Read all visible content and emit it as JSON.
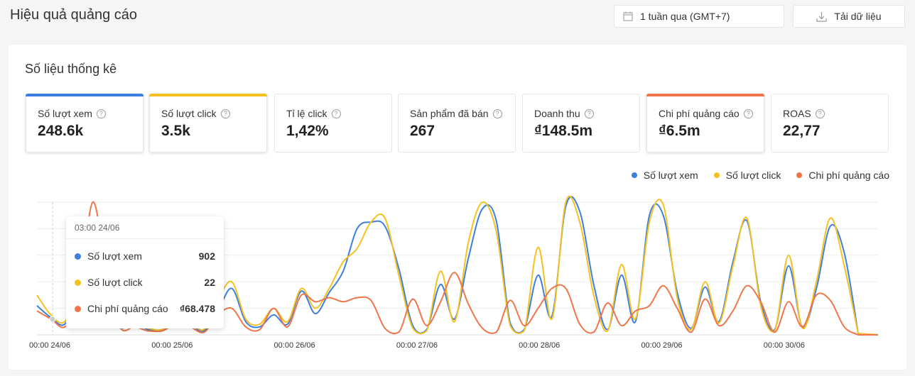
{
  "header": {
    "title": "Hiệu quả quảng cáo",
    "date_range": "1 tuần qua (GMT+7)",
    "download": "Tải dữ liệu"
  },
  "panel": {
    "title": "Số liệu thống kê",
    "metrics": [
      {
        "label": "Số lượt xem",
        "value": "248.6k",
        "color": "#3d7fe0"
      },
      {
        "label": "Số lượt click",
        "value": "3.5k",
        "color": "#f5c11f"
      },
      {
        "label": "Tỉ lệ click",
        "value": "1,42%"
      },
      {
        "label": "Sản phẩm đã bán",
        "value": "267"
      },
      {
        "label": "Doanh thu",
        "value": "₫148.5m"
      },
      {
        "label": "Chi phí quảng cáo",
        "value": "₫6.5m",
        "color": "#f0754a"
      },
      {
        "label": "ROAS",
        "value": "22,77"
      }
    ]
  },
  "legend": [
    {
      "label": "Số lượt xem",
      "color": "#3d7fe0"
    },
    {
      "label": "Số lượt click",
      "color": "#f5c11f"
    },
    {
      "label": "Chi phí quảng cáo",
      "color": "#f0754a"
    }
  ],
  "tooltip": {
    "title": "03:00 24/06",
    "rows": [
      {
        "label": "Số lượt xem",
        "value": "902",
        "color": "#3d7fe0"
      },
      {
        "label": "Số lượt click",
        "value": "22",
        "color": "#f5c11f"
      },
      {
        "label": "Chi phí quảng cáo",
        "value": "₫68.478",
        "color": "#f0754a"
      }
    ]
  },
  "chart_data": {
    "type": "line",
    "x_ticks": [
      "00:00 24/06",
      "00:00 25/06",
      "00:00 26/06",
      "00:00 27/06",
      "00:00 28/06",
      "00:00 29/06",
      "00:00 30/06"
    ],
    "grid": true,
    "legend_position": "top-right",
    "series": [
      {
        "name": "Số lượt xem",
        "color": "#3d7fe0",
        "values": [
          0.22,
          0.13,
          0.08,
          0.3,
          0.2,
          0.12,
          0.05,
          0.08,
          0.04,
          0.03,
          0.1,
          0.08,
          0.03,
          0.18,
          0.35,
          0.1,
          0.06,
          0.15,
          0.08,
          0.33,
          0.16,
          0.32,
          0.48,
          0.8,
          0.85,
          0.82,
          0.5,
          0.07,
          0.04,
          0.38,
          0.12,
          0.58,
          0.95,
          0.86,
          0.09,
          0.04,
          0.45,
          0.14,
          0.97,
          0.93,
          0.38,
          0.04,
          0.45,
          0.1,
          0.9,
          0.9,
          0.32,
          0.05,
          0.36,
          0.1,
          0.55,
          0.86,
          0.25,
          0.04,
          0.52,
          0.06,
          0.35,
          0.82,
          0.62,
          0.01
        ]
      },
      {
        "name": "Số lượt click",
        "color": "#f5c11f",
        "values": [
          0.3,
          0.15,
          0.1,
          0.35,
          0.25,
          0.15,
          0.07,
          0.1,
          0.05,
          0.04,
          0.12,
          0.1,
          0.04,
          0.26,
          0.4,
          0.12,
          0.08,
          0.2,
          0.1,
          0.35,
          0.2,
          0.35,
          0.55,
          0.65,
          0.85,
          0.88,
          0.45,
          0.05,
          0.03,
          0.48,
          0.1,
          0.7,
          1.0,
          0.78,
          0.07,
          0.03,
          0.66,
          0.12,
          1.0,
          0.85,
          0.3,
          0.03,
          0.53,
          0.12,
          0.85,
          0.98,
          0.28,
          0.04,
          0.4,
          0.09,
          0.52,
          0.88,
          0.22,
          0.03,
          0.6,
          0.05,
          0.4,
          0.88,
          0.52,
          0.01
        ]
      },
      {
        "name": "Chi phí quảng cáo",
        "color": "#f0754a",
        "values": [
          0.18,
          0.12,
          0.06,
          0.25,
          1.0,
          0.45,
          0.05,
          0.06,
          0.03,
          0.03,
          0.08,
          0.06,
          0.02,
          0.15,
          0.2,
          0.06,
          0.04,
          0.2,
          0.06,
          0.3,
          0.25,
          0.28,
          0.25,
          0.28,
          0.26,
          0.05,
          0.02,
          0.27,
          0.07,
          0.25,
          0.47,
          0.23,
          0.05,
          0.02,
          0.26,
          0.07,
          0.2,
          0.35,
          0.35,
          0.08,
          0.02,
          0.24,
          0.07,
          0.18,
          0.22,
          0.37,
          0.2,
          0.02,
          0.27,
          0.07,
          0.18,
          0.37,
          0.25,
          0.02,
          0.25,
          0.06,
          0.3,
          0.26,
          0.06,
          0.0
        ]
      }
    ]
  }
}
